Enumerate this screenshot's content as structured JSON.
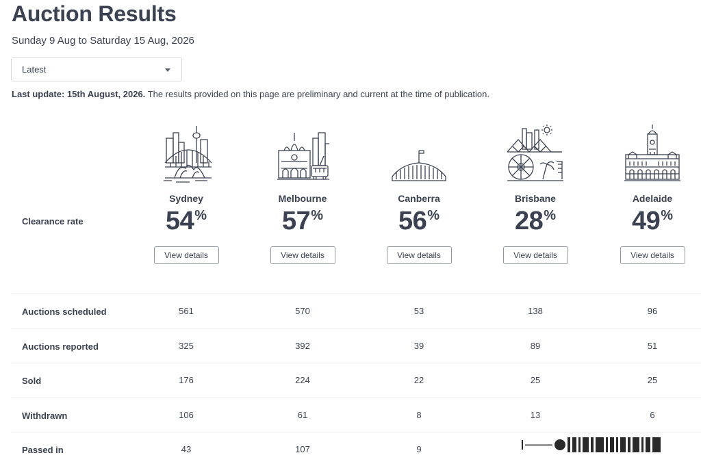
{
  "page": {
    "title": "Auction Results",
    "date_range": "Sunday 9 Aug to Saturday 15 Aug, 2026",
    "dropdown_value": "Latest",
    "update_bold": "Last update: 15th August, 2026.",
    "update_text": " The results provided on this page are preliminary and current at the time of publication."
  },
  "clearance_label": "Clearance rate",
  "view_details_label": "View details",
  "percent_sign": "%",
  "cities": [
    {
      "name": "Sydney",
      "rate": "54",
      "icon": "sydney-skyline-icon"
    },
    {
      "name": "Melbourne",
      "rate": "57",
      "icon": "melbourne-skyline-icon"
    },
    {
      "name": "Canberra",
      "rate": "56",
      "icon": "canberra-parliament-icon"
    },
    {
      "name": "Brisbane",
      "rate": "28",
      "icon": "brisbane-skyline-icon"
    },
    {
      "name": "Adelaide",
      "rate": "49",
      "icon": "adelaide-townhall-icon"
    }
  ],
  "stats": [
    {
      "label": "Auctions scheduled",
      "values": [
        "561",
        "570",
        "53",
        "138",
        "96"
      ]
    },
    {
      "label": "Auctions reported",
      "values": [
        "325",
        "392",
        "39",
        "89",
        "51"
      ]
    },
    {
      "label": "Sold",
      "values": [
        "176",
        "224",
        "22",
        "25",
        "25"
      ]
    },
    {
      "label": "Withdrawn",
      "values": [
        "106",
        "61",
        "8",
        "13",
        "6"
      ]
    },
    {
      "label": "Passed in",
      "values": [
        "43",
        "107",
        "9",
        "",
        ""
      ]
    }
  ]
}
